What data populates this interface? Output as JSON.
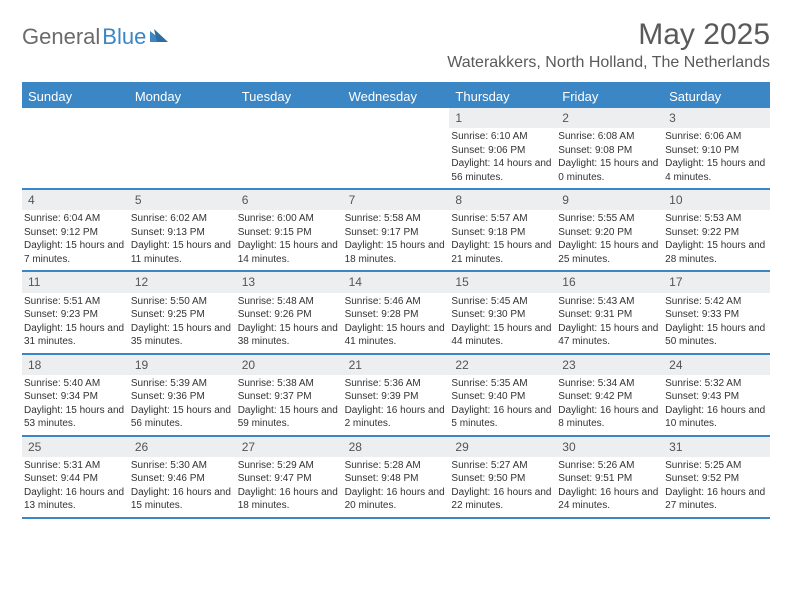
{
  "brand": {
    "general": "General",
    "blue": "Blue"
  },
  "title": "May 2025",
  "location": "Waterakkers, North Holland, The Netherlands",
  "colors": {
    "accent": "#3b86c4",
    "daynum_bg": "#eceef0",
    "text": "#333333"
  },
  "dayNames": [
    "Sunday",
    "Monday",
    "Tuesday",
    "Wednesday",
    "Thursday",
    "Friday",
    "Saturday"
  ],
  "weeks": [
    [
      {
        "num": "",
        "sunrise": "",
        "sunset": "",
        "daylight": ""
      },
      {
        "num": "",
        "sunrise": "",
        "sunset": "",
        "daylight": ""
      },
      {
        "num": "",
        "sunrise": "",
        "sunset": "",
        "daylight": ""
      },
      {
        "num": "",
        "sunrise": "",
        "sunset": "",
        "daylight": ""
      },
      {
        "num": "1",
        "sunrise": "Sunrise: 6:10 AM",
        "sunset": "Sunset: 9:06 PM",
        "daylight": "Daylight: 14 hours and 56 minutes."
      },
      {
        "num": "2",
        "sunrise": "Sunrise: 6:08 AM",
        "sunset": "Sunset: 9:08 PM",
        "daylight": "Daylight: 15 hours and 0 minutes."
      },
      {
        "num": "3",
        "sunrise": "Sunrise: 6:06 AM",
        "sunset": "Sunset: 9:10 PM",
        "daylight": "Daylight: 15 hours and 4 minutes."
      }
    ],
    [
      {
        "num": "4",
        "sunrise": "Sunrise: 6:04 AM",
        "sunset": "Sunset: 9:12 PM",
        "daylight": "Daylight: 15 hours and 7 minutes."
      },
      {
        "num": "5",
        "sunrise": "Sunrise: 6:02 AM",
        "sunset": "Sunset: 9:13 PM",
        "daylight": "Daylight: 15 hours and 11 minutes."
      },
      {
        "num": "6",
        "sunrise": "Sunrise: 6:00 AM",
        "sunset": "Sunset: 9:15 PM",
        "daylight": "Daylight: 15 hours and 14 minutes."
      },
      {
        "num": "7",
        "sunrise": "Sunrise: 5:58 AM",
        "sunset": "Sunset: 9:17 PM",
        "daylight": "Daylight: 15 hours and 18 minutes."
      },
      {
        "num": "8",
        "sunrise": "Sunrise: 5:57 AM",
        "sunset": "Sunset: 9:18 PM",
        "daylight": "Daylight: 15 hours and 21 minutes."
      },
      {
        "num": "9",
        "sunrise": "Sunrise: 5:55 AM",
        "sunset": "Sunset: 9:20 PM",
        "daylight": "Daylight: 15 hours and 25 minutes."
      },
      {
        "num": "10",
        "sunrise": "Sunrise: 5:53 AM",
        "sunset": "Sunset: 9:22 PM",
        "daylight": "Daylight: 15 hours and 28 minutes."
      }
    ],
    [
      {
        "num": "11",
        "sunrise": "Sunrise: 5:51 AM",
        "sunset": "Sunset: 9:23 PM",
        "daylight": "Daylight: 15 hours and 31 minutes."
      },
      {
        "num": "12",
        "sunrise": "Sunrise: 5:50 AM",
        "sunset": "Sunset: 9:25 PM",
        "daylight": "Daylight: 15 hours and 35 minutes."
      },
      {
        "num": "13",
        "sunrise": "Sunrise: 5:48 AM",
        "sunset": "Sunset: 9:26 PM",
        "daylight": "Daylight: 15 hours and 38 minutes."
      },
      {
        "num": "14",
        "sunrise": "Sunrise: 5:46 AM",
        "sunset": "Sunset: 9:28 PM",
        "daylight": "Daylight: 15 hours and 41 minutes."
      },
      {
        "num": "15",
        "sunrise": "Sunrise: 5:45 AM",
        "sunset": "Sunset: 9:30 PM",
        "daylight": "Daylight: 15 hours and 44 minutes."
      },
      {
        "num": "16",
        "sunrise": "Sunrise: 5:43 AM",
        "sunset": "Sunset: 9:31 PM",
        "daylight": "Daylight: 15 hours and 47 minutes."
      },
      {
        "num": "17",
        "sunrise": "Sunrise: 5:42 AM",
        "sunset": "Sunset: 9:33 PM",
        "daylight": "Daylight: 15 hours and 50 minutes."
      }
    ],
    [
      {
        "num": "18",
        "sunrise": "Sunrise: 5:40 AM",
        "sunset": "Sunset: 9:34 PM",
        "daylight": "Daylight: 15 hours and 53 minutes."
      },
      {
        "num": "19",
        "sunrise": "Sunrise: 5:39 AM",
        "sunset": "Sunset: 9:36 PM",
        "daylight": "Daylight: 15 hours and 56 minutes."
      },
      {
        "num": "20",
        "sunrise": "Sunrise: 5:38 AM",
        "sunset": "Sunset: 9:37 PM",
        "daylight": "Daylight: 15 hours and 59 minutes."
      },
      {
        "num": "21",
        "sunrise": "Sunrise: 5:36 AM",
        "sunset": "Sunset: 9:39 PM",
        "daylight": "Daylight: 16 hours and 2 minutes."
      },
      {
        "num": "22",
        "sunrise": "Sunrise: 5:35 AM",
        "sunset": "Sunset: 9:40 PM",
        "daylight": "Daylight: 16 hours and 5 minutes."
      },
      {
        "num": "23",
        "sunrise": "Sunrise: 5:34 AM",
        "sunset": "Sunset: 9:42 PM",
        "daylight": "Daylight: 16 hours and 8 minutes."
      },
      {
        "num": "24",
        "sunrise": "Sunrise: 5:32 AM",
        "sunset": "Sunset: 9:43 PM",
        "daylight": "Daylight: 16 hours and 10 minutes."
      }
    ],
    [
      {
        "num": "25",
        "sunrise": "Sunrise: 5:31 AM",
        "sunset": "Sunset: 9:44 PM",
        "daylight": "Daylight: 16 hours and 13 minutes."
      },
      {
        "num": "26",
        "sunrise": "Sunrise: 5:30 AM",
        "sunset": "Sunset: 9:46 PM",
        "daylight": "Daylight: 16 hours and 15 minutes."
      },
      {
        "num": "27",
        "sunrise": "Sunrise: 5:29 AM",
        "sunset": "Sunset: 9:47 PM",
        "daylight": "Daylight: 16 hours and 18 minutes."
      },
      {
        "num": "28",
        "sunrise": "Sunrise: 5:28 AM",
        "sunset": "Sunset: 9:48 PM",
        "daylight": "Daylight: 16 hours and 20 minutes."
      },
      {
        "num": "29",
        "sunrise": "Sunrise: 5:27 AM",
        "sunset": "Sunset: 9:50 PM",
        "daylight": "Daylight: 16 hours and 22 minutes."
      },
      {
        "num": "30",
        "sunrise": "Sunrise: 5:26 AM",
        "sunset": "Sunset: 9:51 PM",
        "daylight": "Daylight: 16 hours and 24 minutes."
      },
      {
        "num": "31",
        "sunrise": "Sunrise: 5:25 AM",
        "sunset": "Sunset: 9:52 PM",
        "daylight": "Daylight: 16 hours and 27 minutes."
      }
    ]
  ]
}
